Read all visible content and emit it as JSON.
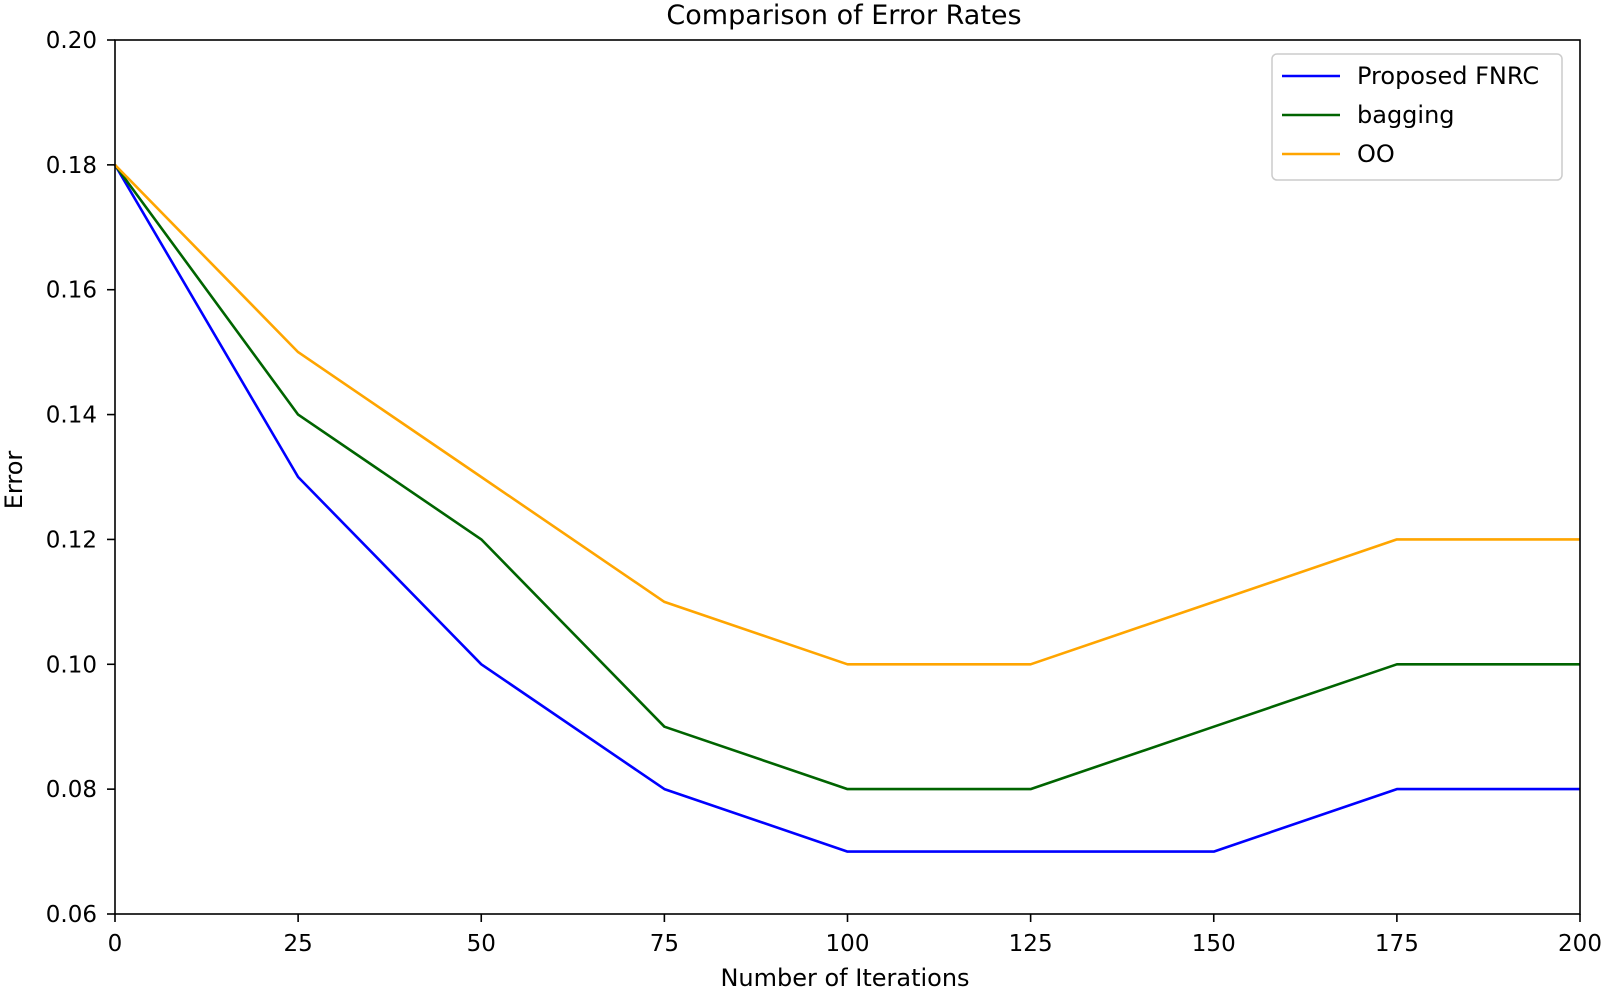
{
  "chart_data": {
    "type": "line",
    "title": "Comparison of Error Rates",
    "xlabel": "Number of Iterations",
    "ylabel": "Error",
    "x": [
      0,
      25,
      50,
      75,
      100,
      125,
      150,
      175,
      200
    ],
    "xlim": [
      0,
      200
    ],
    "ylim": [
      0.06,
      0.2
    ],
    "xticks": [
      "0",
      "25",
      "50",
      "75",
      "100",
      "125",
      "150",
      "175",
      "200"
    ],
    "yticks": [
      "0.06",
      "0.08",
      "0.10",
      "0.12",
      "0.14",
      "0.16",
      "0.18",
      "0.20"
    ],
    "grid": false,
    "legend_position": "top-right",
    "series": [
      {
        "name": "Proposed FNRC",
        "color": "#0000ff",
        "values": [
          0.18,
          0.13,
          0.1,
          0.08,
          0.07,
          0.07,
          0.07,
          0.08,
          0.08
        ]
      },
      {
        "name": "bagging",
        "color": "#006400",
        "values": [
          0.18,
          0.14,
          0.12,
          0.09,
          0.08,
          0.08,
          0.09,
          0.1,
          0.1
        ]
      },
      {
        "name": "OO",
        "color": "#ffa500",
        "values": [
          0.18,
          0.15,
          0.13,
          0.11,
          0.1,
          0.1,
          0.11,
          0.12,
          0.12
        ]
      }
    ]
  }
}
